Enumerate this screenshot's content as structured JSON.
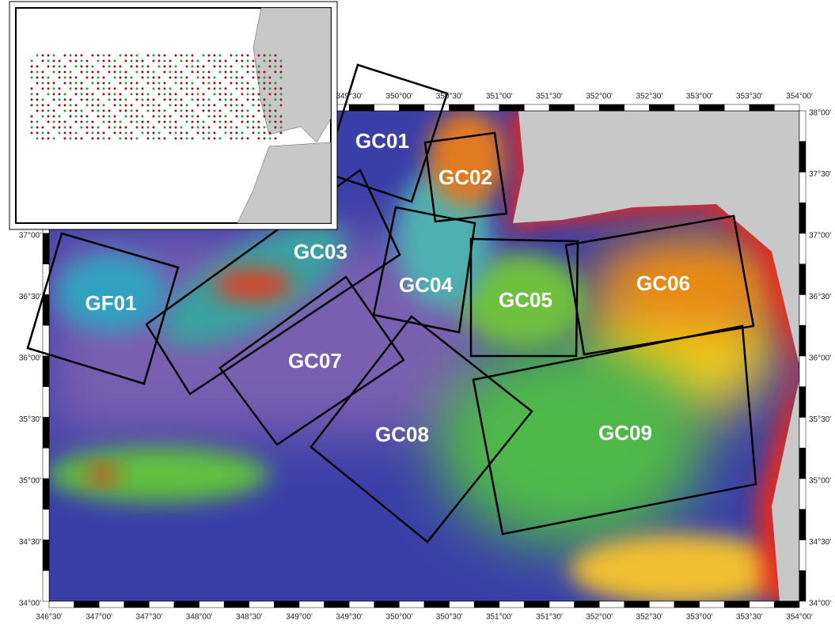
{
  "map": {
    "lon_labels_top": [
      "349°30'",
      "350°00'",
      "350°30'",
      "351°00'",
      "351°30'",
      "352°00'",
      "352°30'",
      "353°00'",
      "353°30'",
      "354°00'"
    ],
    "lon_labels_bottom": [
      "346°30'",
      "347°00'",
      "347°30'",
      "348°00'",
      "348°30'",
      "349°00'",
      "349°30'",
      "350°00'",
      "350°30'",
      "351°00'",
      "351°30'",
      "352°00'",
      "352°30'",
      "353°00'",
      "353°30'",
      "354°00'"
    ],
    "lat_labels_left": [
      "37°00'",
      "36°30'",
      "36°00'",
      "35°30'",
      "35°00'",
      "34°30'",
      "34°00'"
    ],
    "lat_labels_right": [
      "38°00'",
      "37°30'",
      "37°00'",
      "36°30'",
      "36°00'",
      "35°30'",
      "35°00'",
      "34°30'",
      "34°00'"
    ],
    "boxes": [
      "GC01",
      "GC02",
      "GC03",
      "GC04",
      "GC05",
      "GC06",
      "GC07",
      "GC08",
      "GF01",
      "GC09"
    ]
  }
}
